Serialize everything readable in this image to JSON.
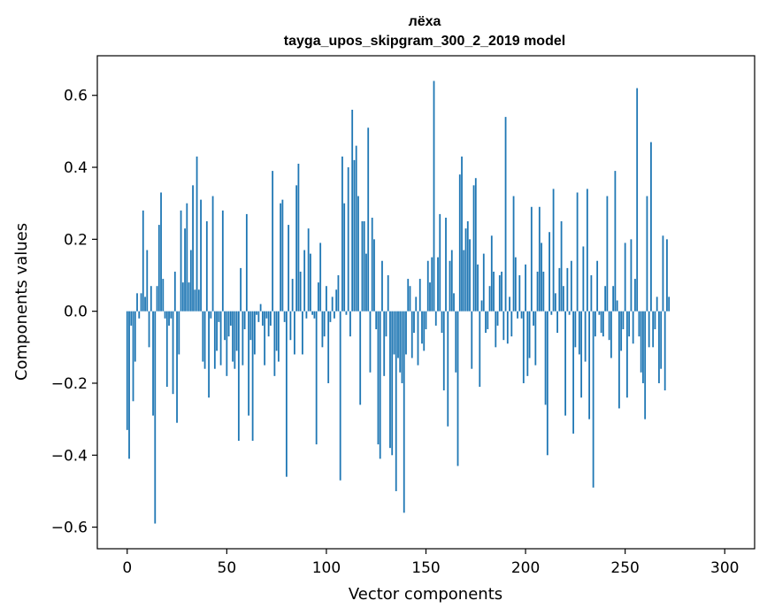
{
  "chart_data": {
    "type": "bar",
    "title": "лёха",
    "subtitle": "tayga_upos_skipgram_300_2_2019 model",
    "xlabel": "Vector components",
    "ylabel": "Components values",
    "xlim": [
      -15,
      315
    ],
    "ylim": [
      -0.66,
      0.71
    ],
    "xticks": [
      0,
      50,
      100,
      150,
      200,
      250,
      300
    ],
    "xtick_labels": [
      "0",
      "50",
      "100",
      "150",
      "200",
      "250",
      "300"
    ],
    "yticks": [
      -0.6,
      -0.4,
      -0.2,
      0.0,
      0.2,
      0.4,
      0.6
    ],
    "ytick_labels": [
      "−0.6",
      "−0.4",
      "−0.2",
      "0.0",
      "0.2",
      "0.4",
      "0.6"
    ],
    "grid": false,
    "bar_color": "#1f77b4",
    "x_start": 0,
    "values": [
      -0.33,
      -0.41,
      -0.04,
      -0.25,
      -0.14,
      0.05,
      -0.02,
      0.05,
      0.28,
      0.04,
      0.17,
      -0.1,
      0.07,
      -0.29,
      -0.59,
      0.07,
      0.24,
      0.33,
      0.09,
      -0.02,
      -0.21,
      -0.04,
      -0.02,
      -0.23,
      0.11,
      -0.31,
      -0.12,
      0.28,
      0.08,
      0.23,
      0.3,
      0.08,
      0.17,
      0.35,
      0.06,
      0.43,
      0.06,
      0.31,
      -0.14,
      -0.16,
      0.25,
      -0.24,
      -0.02,
      0.32,
      -0.16,
      -0.11,
      -0.03,
      -0.15,
      0.28,
      -0.08,
      -0.18,
      -0.07,
      -0.04,
      -0.14,
      -0.16,
      -0.11,
      -0.36,
      0.12,
      -0.15,
      -0.05,
      0.27,
      -0.29,
      -0.08,
      -0.36,
      -0.12,
      -0.01,
      -0.03,
      0.02,
      -0.04,
      -0.15,
      -0.02,
      -0.07,
      -0.04,
      0.39,
      -0.18,
      -0.11,
      -0.14,
      0.3,
      0.31,
      -0.03,
      -0.46,
      0.24,
      -0.08,
      0.09,
      -0.12,
      0.35,
      0.41,
      0.11,
      -0.12,
      0.17,
      -0.02,
      0.23,
      0.16,
      -0.01,
      -0.02,
      -0.37,
      0.08,
      0.19,
      -0.1,
      -0.07,
      0.07,
      -0.2,
      -0.03,
      0.04,
      -0.02,
      0.06,
      0.1,
      -0.47,
      0.43,
      0.3,
      -0.01,
      0.4,
      -0.07,
      0.56,
      0.42,
      0.46,
      0.32,
      -0.26,
      0.25,
      0.25,
      0.16,
      0.51,
      -0.17,
      0.26,
      0.2,
      -0.05,
      -0.37,
      -0.41,
      0.14,
      -0.18,
      -0.07,
      0.1,
      -0.38,
      -0.4,
      -0.12,
      -0.5,
      -0.13,
      -0.17,
      -0.2,
      -0.56,
      -0.12,
      0.09,
      0.07,
      -0.13,
      -0.06,
      0.04,
      -0.15,
      0.09,
      -0.09,
      -0.11,
      -0.05,
      0.14,
      0.08,
      0.15,
      0.64,
      -0.04,
      0.15,
      0.27,
      -0.06,
      -0.22,
      0.26,
      -0.32,
      0.14,
      0.17,
      0.05,
      -0.17,
      -0.43,
      0.38,
      0.43,
      0.17,
      0.23,
      0.25,
      0.2,
      -0.16,
      0.35,
      0.37,
      0.13,
      -0.21,
      0.03,
      0.16,
      -0.06,
      -0.05,
      0.07,
      0.21,
      0.11,
      -0.1,
      -0.04,
      0.1,
      0.11,
      -0.08,
      0.54,
      -0.09,
      0.04,
      -0.07,
      0.32,
      0.15,
      -0.02,
      0.1,
      -0.02,
      -0.2,
      0.13,
      -0.18,
      -0.13,
      0.29,
      -0.04,
      -0.15,
      0.11,
      0.29,
      0.19,
      0.11,
      -0.26,
      -0.4,
      0.22,
      -0.01,
      0.34,
      0.05,
      -0.06,
      0.12,
      0.25,
      0.07,
      -0.29,
      0.12,
      -0.01,
      0.14,
      -0.34,
      -0.1,
      0.33,
      -0.12,
      -0.24,
      0.18,
      -0.14,
      0.34,
      -0.3,
      0.1,
      -0.49,
      -0.07,
      0.14,
      -0.01,
      -0.06,
      -0.07,
      0.07,
      0.32,
      -0.08,
      -0.13,
      0.07,
      0.39,
      0.03,
      -0.27,
      -0.11,
      -0.05,
      0.19,
      -0.24,
      -0.07,
      0.2,
      -0.09,
      0.09,
      0.62,
      -0.07,
      -0.17,
      -0.2,
      -0.3,
      0.32,
      -0.1,
      0.47,
      -0.1,
      -0.05,
      0.04,
      -0.2,
      -0.16,
      0.21,
      -0.22,
      0.2,
      0.04
    ]
  }
}
